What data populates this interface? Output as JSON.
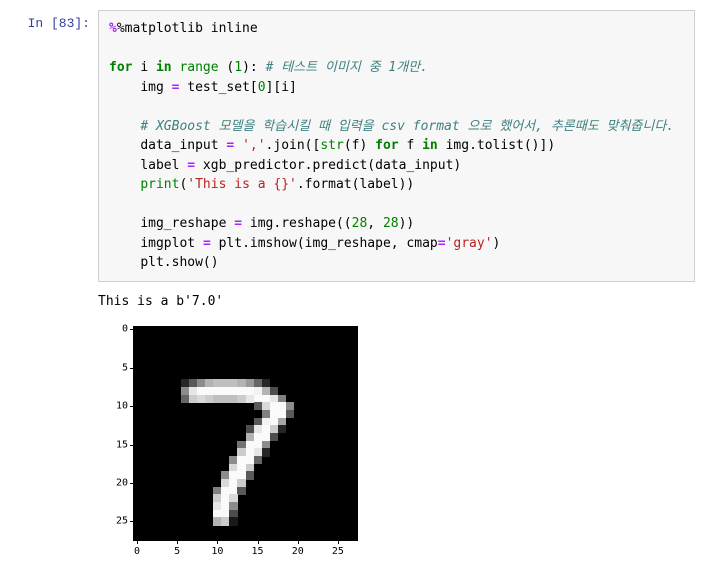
{
  "prompt": {
    "label": "In [83]:"
  },
  "code": {
    "line1_magic": "%matplotlib",
    "line1_arg": " inline",
    "for_kw": "for",
    "in_kw": "in",
    "i_var": "i",
    "range_fn": "range",
    "one": "1",
    "zero": "0",
    "twentyeight": "28",
    "comment1": "# 테스트 이미지 중 1개만.",
    "img_assign": "img ",
    "eq": "=",
    "test_set": " test_set[",
    "idx_close": "][i]",
    "comment2": "# XGBoost 모델을 학습시킬 때 입력을 csv format 으로 했어서, 추론때도 맞춰줍니다.",
    "data_input": "data_input ",
    "comma_str": "','",
    "dot_join": ".join([",
    "str_fn": "str",
    "f_arg": "(f) ",
    "f_var": "f",
    "img_tolist": " img.tolist()])",
    "label_var": "label ",
    "xgb_call": " xgb_predictor.predict(data_input)",
    "print_fn": "print",
    "print_str": "'This is a {}'",
    "dot_format": ".format(label))",
    "img_reshape_var": "img_reshape ",
    "img_reshape_call": " img.reshape((",
    "comma": ", ",
    "close2": "))",
    "imgplot_var": "imgplot ",
    "plt_imshow": " plt.imshow(img_reshape, cmap",
    "gray_str": "'gray'",
    "close1": ")",
    "plt_show": "plt.show()"
  },
  "output": {
    "text": "This is a b'7.0'"
  },
  "chart": {
    "type": "imshow",
    "xlim": [
      -0.5,
      27.5
    ],
    "ylim": [
      27.5,
      -0.5
    ],
    "xticks": [
      0,
      5,
      10,
      15,
      20,
      25
    ],
    "yticks": [
      0,
      5,
      10,
      15,
      20,
      25
    ],
    "background_color": "#000000",
    "cmap": "gray",
    "tick_fontsize": 10,
    "pixels": [
      {
        "r": 7,
        "c": 6,
        "v": 0.15
      },
      {
        "r": 7,
        "c": 7,
        "v": 0.35
      },
      {
        "r": 7,
        "c": 8,
        "v": 0.55
      },
      {
        "r": 7,
        "c": 9,
        "v": 0.7
      },
      {
        "r": 7,
        "c": 10,
        "v": 0.75
      },
      {
        "r": 7,
        "c": 11,
        "v": 0.75
      },
      {
        "r": 7,
        "c": 12,
        "v": 0.75
      },
      {
        "r": 7,
        "c": 13,
        "v": 0.7
      },
      {
        "r": 7,
        "c": 14,
        "v": 0.6
      },
      {
        "r": 7,
        "c": 15,
        "v": 0.4
      },
      {
        "r": 7,
        "c": 16,
        "v": 0.15
      },
      {
        "r": 8,
        "c": 6,
        "v": 0.55
      },
      {
        "r": 8,
        "c": 7,
        "v": 0.9
      },
      {
        "r": 8,
        "c": 8,
        "v": 0.98
      },
      {
        "r": 8,
        "c": 9,
        "v": 0.98
      },
      {
        "r": 8,
        "c": 10,
        "v": 0.98
      },
      {
        "r": 8,
        "c": 11,
        "v": 0.98
      },
      {
        "r": 8,
        "c": 12,
        "v": 0.98
      },
      {
        "r": 8,
        "c": 13,
        "v": 0.98
      },
      {
        "r": 8,
        "c": 14,
        "v": 0.98
      },
      {
        "r": 8,
        "c": 15,
        "v": 0.95
      },
      {
        "r": 8,
        "c": 16,
        "v": 0.7
      },
      {
        "r": 8,
        "c": 17,
        "v": 0.3
      },
      {
        "r": 9,
        "c": 6,
        "v": 0.4
      },
      {
        "r": 9,
        "c": 7,
        "v": 0.8
      },
      {
        "r": 9,
        "c": 8,
        "v": 0.85
      },
      {
        "r": 9,
        "c": 9,
        "v": 0.8
      },
      {
        "r": 9,
        "c": 10,
        "v": 0.75
      },
      {
        "r": 9,
        "c": 11,
        "v": 0.75
      },
      {
        "r": 9,
        "c": 12,
        "v": 0.75
      },
      {
        "r": 9,
        "c": 13,
        "v": 0.8
      },
      {
        "r": 9,
        "c": 14,
        "v": 0.9
      },
      {
        "r": 9,
        "c": 15,
        "v": 0.98
      },
      {
        "r": 9,
        "c": 16,
        "v": 0.98
      },
      {
        "r": 9,
        "c": 17,
        "v": 0.9
      },
      {
        "r": 9,
        "c": 18,
        "v": 0.5
      },
      {
        "r": 10,
        "c": 15,
        "v": 0.35
      },
      {
        "r": 10,
        "c": 16,
        "v": 0.85
      },
      {
        "r": 10,
        "c": 17,
        "v": 0.98
      },
      {
        "r": 10,
        "c": 18,
        "v": 0.98
      },
      {
        "r": 10,
        "c": 19,
        "v": 0.55
      },
      {
        "r": 11,
        "c": 16,
        "v": 0.5
      },
      {
        "r": 11,
        "c": 17,
        "v": 0.98
      },
      {
        "r": 11,
        "c": 18,
        "v": 0.98
      },
      {
        "r": 11,
        "c": 19,
        "v": 0.35
      },
      {
        "r": 12,
        "c": 15,
        "v": 0.35
      },
      {
        "r": 12,
        "c": 16,
        "v": 0.95
      },
      {
        "r": 12,
        "c": 17,
        "v": 0.98
      },
      {
        "r": 12,
        "c": 18,
        "v": 0.65
      },
      {
        "r": 13,
        "c": 14,
        "v": 0.3
      },
      {
        "r": 13,
        "c": 15,
        "v": 0.9
      },
      {
        "r": 13,
        "c": 16,
        "v": 0.98
      },
      {
        "r": 13,
        "c": 17,
        "v": 0.8
      },
      {
        "r": 13,
        "c": 18,
        "v": 0.15
      },
      {
        "r": 14,
        "c": 14,
        "v": 0.7
      },
      {
        "r": 14,
        "c": 15,
        "v": 0.98
      },
      {
        "r": 14,
        "c": 16,
        "v": 0.98
      },
      {
        "r": 14,
        "c": 17,
        "v": 0.3
      },
      {
        "r": 15,
        "c": 13,
        "v": 0.45
      },
      {
        "r": 15,
        "c": 14,
        "v": 0.98
      },
      {
        "r": 15,
        "c": 15,
        "v": 0.98
      },
      {
        "r": 15,
        "c": 16,
        "v": 0.55
      },
      {
        "r": 16,
        "c": 13,
        "v": 0.8
      },
      {
        "r": 16,
        "c": 14,
        "v": 0.98
      },
      {
        "r": 16,
        "c": 15,
        "v": 0.9
      },
      {
        "r": 16,
        "c": 16,
        "v": 0.15
      },
      {
        "r": 17,
        "c": 12,
        "v": 0.55
      },
      {
        "r": 17,
        "c": 13,
        "v": 0.98
      },
      {
        "r": 17,
        "c": 14,
        "v": 0.98
      },
      {
        "r": 17,
        "c": 15,
        "v": 0.4
      },
      {
        "r": 18,
        "c": 12,
        "v": 0.85
      },
      {
        "r": 18,
        "c": 13,
        "v": 0.98
      },
      {
        "r": 18,
        "c": 14,
        "v": 0.8
      },
      {
        "r": 19,
        "c": 11,
        "v": 0.55
      },
      {
        "r": 19,
        "c": 12,
        "v": 0.98
      },
      {
        "r": 19,
        "c": 13,
        "v": 0.98
      },
      {
        "r": 19,
        "c": 14,
        "v": 0.35
      },
      {
        "r": 20,
        "c": 11,
        "v": 0.85
      },
      {
        "r": 20,
        "c": 12,
        "v": 0.98
      },
      {
        "r": 20,
        "c": 13,
        "v": 0.8
      },
      {
        "r": 21,
        "c": 10,
        "v": 0.5
      },
      {
        "r": 21,
        "c": 11,
        "v": 0.98
      },
      {
        "r": 21,
        "c": 12,
        "v": 0.98
      },
      {
        "r": 21,
        "c": 13,
        "v": 0.35
      },
      {
        "r": 22,
        "c": 10,
        "v": 0.8
      },
      {
        "r": 22,
        "c": 11,
        "v": 0.98
      },
      {
        "r": 22,
        "c": 12,
        "v": 0.85
      },
      {
        "r": 23,
        "c": 10,
        "v": 0.9
      },
      {
        "r": 23,
        "c": 11,
        "v": 0.98
      },
      {
        "r": 23,
        "c": 12,
        "v": 0.55
      },
      {
        "r": 24,
        "c": 10,
        "v": 0.98
      },
      {
        "r": 24,
        "c": 11,
        "v": 0.98
      },
      {
        "r": 24,
        "c": 12,
        "v": 0.3
      },
      {
        "r": 25,
        "c": 10,
        "v": 0.7
      },
      {
        "r": 25,
        "c": 11,
        "v": 0.8
      },
      {
        "r": 25,
        "c": 12,
        "v": 0.1
      }
    ]
  }
}
